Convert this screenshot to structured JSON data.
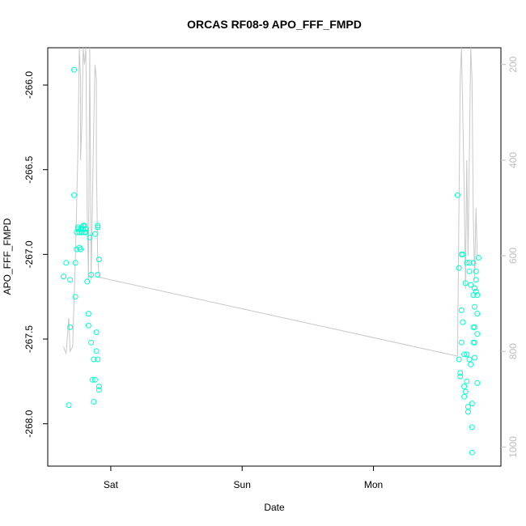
{
  "chart_data": {
    "type": "scatter",
    "title": "ORCAS RF08-9 APO_FFF_FMPD",
    "xlabel": "Date",
    "ylabel": "APO_FFF_FMPD",
    "x_unit": "days since start",
    "xlim": [
      -0.48,
      2.97
    ],
    "ylim": [
      -268.25,
      -265.78
    ],
    "y2lim": [
      1040,
      165
    ],
    "x_ticks": [
      {
        "value": 0,
        "label": "Sat"
      },
      {
        "value": 1,
        "label": "Sun"
      },
      {
        "value": 2,
        "label": "Mon"
      }
    ],
    "y_ticks": [
      {
        "value": -266.0,
        "label": "-266.0"
      },
      {
        "value": -266.5,
        "label": "-266.5"
      },
      {
        "value": -267.0,
        "label": "-267.0"
      },
      {
        "value": -267.5,
        "label": "-267.5"
      },
      {
        "value": -268.0,
        "label": "-268.0"
      }
    ],
    "y2_ticks": [
      {
        "value": 200,
        "label": "200"
      },
      {
        "value": 400,
        "label": "400"
      },
      {
        "value": 600,
        "label": "600"
      },
      {
        "value": 800,
        "label": "800"
      },
      {
        "value": 1000,
        "label": "1000"
      }
    ],
    "colors": {
      "points": "#00ffcc",
      "line": "#c8c8c8",
      "axis": "#000000",
      "right_axis": "#bdbdbd"
    },
    "series": [
      {
        "kind": "points",
        "axis": "left",
        "points": [
          [
            -0.36,
            -267.13
          ],
          [
            -0.34,
            -267.05
          ],
          [
            -0.32,
            -267.89
          ],
          [
            -0.31,
            -267.15
          ],
          [
            -0.31,
            -267.43
          ],
          [
            -0.28,
            -265.91
          ],
          [
            -0.28,
            -266.65
          ],
          [
            -0.27,
            -267.05
          ],
          [
            -0.27,
            -267.25
          ],
          [
            -0.26,
            -266.97
          ],
          [
            -0.26,
            -266.87
          ],
          [
            -0.25,
            -266.85
          ],
          [
            -0.25,
            -266.84
          ],
          [
            -0.24,
            -266.87
          ],
          [
            -0.24,
            -266.96
          ],
          [
            -0.23,
            -266.97
          ],
          [
            -0.23,
            -266.85
          ],
          [
            -0.22,
            -266.84
          ],
          [
            -0.22,
            -266.87
          ],
          [
            -0.21,
            -266.85
          ],
          [
            -0.21,
            -266.83
          ],
          [
            -0.2,
            -266.87
          ],
          [
            -0.2,
            -266.83
          ],
          [
            -0.19,
            -266.85
          ],
          [
            -0.19,
            -266.87
          ],
          [
            -0.18,
            -267.16
          ],
          [
            -0.17,
            -267.35
          ],
          [
            -0.17,
            -267.42
          ],
          [
            -0.16,
            -266.9
          ],
          [
            -0.15,
            -267.12
          ],
          [
            -0.15,
            -267.52
          ],
          [
            -0.14,
            -267.74
          ],
          [
            -0.13,
            -267.62
          ],
          [
            -0.13,
            -267.87
          ],
          [
            -0.12,
            -266.88
          ],
          [
            -0.12,
            -267.74
          ],
          [
            -0.11,
            -267.46
          ],
          [
            -0.11,
            -267.57
          ],
          [
            -0.1,
            -266.83
          ],
          [
            -0.1,
            -266.84
          ],
          [
            -0.1,
            -267.62
          ],
          [
            -0.09,
            -267.03
          ],
          [
            -0.09,
            -267.78
          ],
          [
            -0.09,
            -267.8
          ],
          [
            -0.1,
            -267.12
          ],
          [
            2.64,
            -266.65
          ],
          [
            2.65,
            -267.08
          ],
          [
            2.65,
            -267.62
          ],
          [
            2.66,
            -267.7
          ],
          [
            2.66,
            -267.72
          ],
          [
            2.67,
            -267.0
          ],
          [
            2.67,
            -267.52
          ],
          [
            2.67,
            -267.33
          ],
          [
            2.68,
            -267.0
          ],
          [
            2.68,
            -267.4
          ],
          [
            2.69,
            -267.59
          ],
          [
            2.69,
            -267.78
          ],
          [
            2.69,
            -267.84
          ],
          [
            2.7,
            -267.81
          ],
          [
            2.7,
            -267.17
          ],
          [
            2.71,
            -267.05
          ],
          [
            2.71,
            -267.59
          ],
          [
            2.71,
            -267.75
          ],
          [
            2.72,
            -267.9
          ],
          [
            2.72,
            -267.93
          ],
          [
            2.73,
            -267.05
          ],
          [
            2.73,
            -267.1
          ],
          [
            2.73,
            -267.62
          ],
          [
            2.74,
            -267.18
          ],
          [
            2.74,
            -267.65
          ],
          [
            2.75,
            -267.88
          ],
          [
            2.75,
            -268.02
          ],
          [
            2.75,
            -268.17
          ],
          [
            2.76,
            -267.05
          ],
          [
            2.76,
            -267.24
          ],
          [
            2.76,
            -267.43
          ],
          [
            2.76,
            -267.52
          ],
          [
            2.77,
            -267.2
          ],
          [
            2.77,
            -267.31
          ],
          [
            2.77,
            -267.43
          ],
          [
            2.77,
            -267.52
          ],
          [
            2.77,
            -267.61
          ],
          [
            2.78,
            -267.22
          ],
          [
            2.78,
            -267.1
          ],
          [
            2.78,
            -267.15
          ],
          [
            2.79,
            -267.24
          ],
          [
            2.79,
            -267.35
          ],
          [
            2.79,
            -267.47
          ],
          [
            2.79,
            -267.76
          ],
          [
            2.8,
            -267.02
          ]
        ]
      },
      {
        "kind": "line",
        "axis": "right",
        "points": [
          [
            -0.36,
            790
          ],
          [
            -0.34,
            805
          ],
          [
            -0.32,
            730
          ],
          [
            -0.31,
            800
          ],
          [
            -0.29,
            790
          ],
          [
            -0.27,
            610
          ],
          [
            -0.25,
            380
          ],
          [
            -0.24,
            165
          ],
          [
            -0.23,
            230
          ],
          [
            -0.23,
            400
          ],
          [
            -0.22,
            320
          ],
          [
            -0.21,
            165
          ],
          [
            -0.2,
            200
          ],
          [
            -0.19,
            165
          ],
          [
            -0.18,
            500
          ],
          [
            -0.17,
            650
          ],
          [
            -0.16,
            165
          ],
          [
            -0.15,
            650
          ],
          [
            -0.13,
            330
          ],
          [
            -0.12,
            200
          ],
          [
            -0.11,
            230
          ],
          [
            -0.11,
            400
          ],
          [
            -0.1,
            600
          ],
          [
            -0.09,
            645
          ],
          [
            2.64,
            810
          ],
          [
            2.66,
            230
          ],
          [
            2.67,
            165
          ],
          [
            2.69,
            460
          ],
          [
            2.7,
            670
          ],
          [
            2.71,
            400
          ],
          [
            2.72,
            600
          ],
          [
            2.74,
            165
          ],
          [
            2.75,
            230
          ],
          [
            2.76,
            520
          ],
          [
            2.77,
            650
          ],
          [
            2.78,
            500
          ],
          [
            2.79,
            600
          ]
        ]
      }
    ]
  }
}
